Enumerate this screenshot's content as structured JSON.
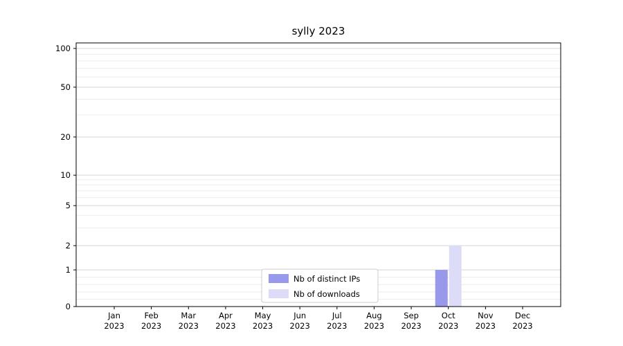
{
  "chart_data": {
    "type": "bar",
    "title": "sylly 2023",
    "categories": [
      "Jan 2023",
      "Feb 2023",
      "Mar 2023",
      "Apr 2023",
      "May 2023",
      "Jun 2023",
      "Jul 2023",
      "Aug 2023",
      "Sep 2023",
      "Oct 2023",
      "Nov 2023",
      "Dec 2023"
    ],
    "series": [
      {
        "name": "Nb of distinct IPs",
        "color": "#9999ec",
        "values": [
          0,
          0,
          0,
          0,
          0,
          0,
          0,
          0,
          0,
          1,
          0,
          0
        ]
      },
      {
        "name": "Nb of downloads",
        "color": "#dcdcf8",
        "values": [
          0,
          0,
          0,
          0,
          0,
          0,
          0,
          0,
          0,
          2,
          0,
          0
        ]
      }
    ],
    "yscale": "symlog",
    "yticks": [
      0,
      1,
      2,
      5,
      10,
      20,
      50,
      100
    ],
    "yticks_minor": [
      0.2,
      0.4,
      0.6,
      0.8,
      3,
      4,
      6,
      7,
      8,
      9,
      30,
      40,
      60,
      70,
      80,
      90
    ],
    "ylim": [
      0,
      100
    ],
    "grid": "horizontal",
    "legend_position": "lower-center-inside",
    "colors": {
      "grid_major": "#d4d4d4",
      "grid_minor": "#ebebeb",
      "spine": "#000000",
      "legend_border": "#cccccc"
    }
  }
}
